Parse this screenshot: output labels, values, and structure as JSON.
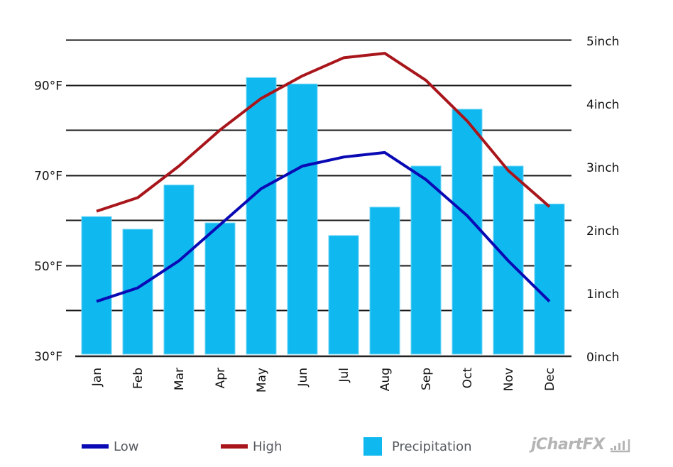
{
  "chart_data": {
    "type": "bar+line",
    "title": "",
    "categories": [
      "Jan",
      "Feb",
      "Mar",
      "Apr",
      "May",
      "Jun",
      "Jul",
      "Aug",
      "Sep",
      "Oct",
      "Nov",
      "Dec"
    ],
    "series": [
      {
        "name": "Low",
        "type": "line",
        "axis": "left",
        "color": "#0a0ab4",
        "values": [
          42,
          45,
          51,
          59,
          67,
          72,
          74,
          75,
          69,
          61,
          51,
          42
        ]
      },
      {
        "name": "High",
        "type": "line",
        "axis": "left",
        "color": "#a8161c",
        "values": [
          62,
          65,
          72,
          80,
          87,
          92,
          96,
          97,
          91,
          82,
          71,
          63
        ]
      },
      {
        "name": "Precipitation",
        "type": "bar",
        "axis": "right",
        "color": "#10b8f0",
        "values": [
          2.2,
          2.0,
          2.7,
          2.1,
          4.4,
          4.3,
          1.9,
          2.35,
          3.0,
          3.9,
          3.0,
          2.4
        ]
      }
    ],
    "left_axis": {
      "unit": "°F",
      "ylim": [
        30,
        100
      ],
      "gridline_step": 10,
      "tick_labels": [
        "30°F",
        "50°F",
        "70°F",
        "90°F"
      ],
      "tick_values": [
        30,
        50,
        70,
        90
      ]
    },
    "right_axis": {
      "unit": "inch",
      "ylim": [
        0,
        5
      ],
      "tick_labels": [
        "0inch",
        "1inch",
        "2inch",
        "3inch",
        "4inch",
        "5inch"
      ],
      "tick_values": [
        0,
        1,
        2,
        3,
        4,
        5
      ]
    },
    "xlabel": "",
    "ylabel": "",
    "grid": true,
    "legend_position": "bottom"
  },
  "legend": {
    "items": [
      {
        "label": "Low",
        "color": "#0a0ab4",
        "kind": "line"
      },
      {
        "label": "High",
        "color": "#a8161c",
        "kind": "line"
      },
      {
        "label": "Precipitation",
        "color": "#10b8f0",
        "kind": "box"
      }
    ]
  },
  "branding": {
    "logo_text": "jChartFX",
    "logo_icon": "bar-chart-icon"
  }
}
